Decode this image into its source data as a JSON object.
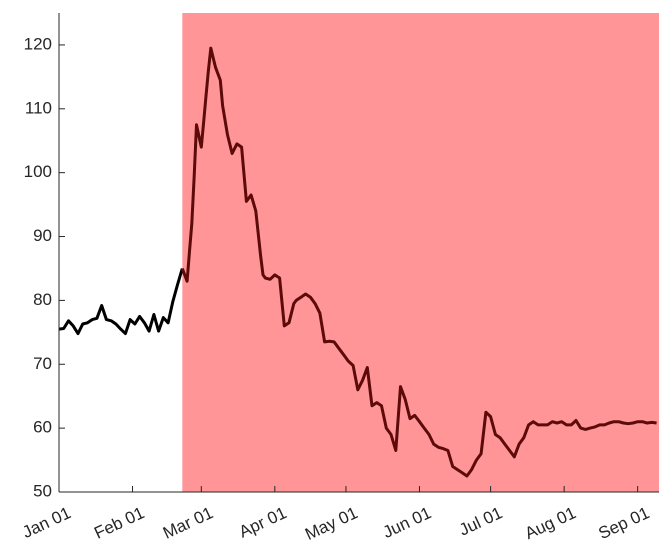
{
  "chart_data": {
    "type": "line",
    "title": "",
    "xlabel": "",
    "ylabel": "",
    "ylim": [
      50,
      125
    ],
    "xlim": [
      "2020-01-01",
      "2020-09-10"
    ],
    "grid": false,
    "colors": {
      "line_normal": "#000000",
      "line_shaded": "#5c0a0a",
      "shade": "#ff9597",
      "axis": "#262626"
    },
    "yticks": [
      50,
      60,
      70,
      80,
      90,
      100,
      110,
      120
    ],
    "ytick_labels": [
      "50",
      "60",
      "70",
      "80",
      "90",
      "100",
      "110",
      "120"
    ],
    "xticks": [
      "2020-01-01",
      "2020-02-01",
      "2020-03-01",
      "2020-04-01",
      "2020-05-01",
      "2020-06-01",
      "2020-07-01",
      "2020-08-01",
      "2020-09-01"
    ],
    "xtick_labels": [
      "Jan 01",
      "Feb 01",
      "Mar 01",
      "Apr 01",
      "May 01",
      "Jun 01",
      "Jul 01",
      "Aug 01",
      "Sep 01"
    ],
    "shaded_region": {
      "x_start": "2020-02-22",
      "x_end": "2020-09-10"
    },
    "series": [
      {
        "x": [
          "2020-01-01",
          "2020-01-03",
          "2020-01-05",
          "2020-01-07",
          "2020-01-09",
          "2020-01-11",
          "2020-01-13",
          "2020-01-15",
          "2020-01-17",
          "2020-01-19",
          "2020-01-21",
          "2020-01-23",
          "2020-01-25",
          "2020-01-27",
          "2020-01-29",
          "2020-01-31",
          "2020-02-02",
          "2020-02-04",
          "2020-02-06",
          "2020-02-08",
          "2020-02-10",
          "2020-02-12",
          "2020-02-14",
          "2020-02-16",
          "2020-02-18",
          "2020-02-20",
          "2020-02-22",
          "2020-02-24",
          "2020-02-25",
          "2020-02-26",
          "2020-02-27",
          "2020-02-28",
          "2020-03-01",
          "2020-03-02",
          "2020-03-03",
          "2020-03-04",
          "2020-03-05",
          "2020-03-07",
          "2020-03-09",
          "2020-03-10",
          "2020-03-12",
          "2020-03-14",
          "2020-03-16",
          "2020-03-18",
          "2020-03-20",
          "2020-03-22",
          "2020-03-24",
          "2020-03-26",
          "2020-03-27",
          "2020-03-28",
          "2020-03-30",
          "2020-04-01",
          "2020-04-03",
          "2020-04-05",
          "2020-04-07",
          "2020-04-09",
          "2020-04-10",
          "2020-04-12",
          "2020-04-14",
          "2020-04-16",
          "2020-04-18",
          "2020-04-20",
          "2020-04-22",
          "2020-04-24",
          "2020-04-26",
          "2020-04-28",
          "2020-04-30",
          "2020-05-02",
          "2020-05-04",
          "2020-05-06",
          "2020-05-08",
          "2020-05-10",
          "2020-05-12",
          "2020-05-14",
          "2020-05-16",
          "2020-05-18",
          "2020-05-20",
          "2020-05-22",
          "2020-05-24",
          "2020-05-26",
          "2020-05-28",
          "2020-05-30",
          "2020-06-01",
          "2020-06-03",
          "2020-06-05",
          "2020-06-07",
          "2020-06-09",
          "2020-06-11",
          "2020-06-13",
          "2020-06-15",
          "2020-06-17",
          "2020-06-19",
          "2020-06-21",
          "2020-06-23",
          "2020-06-25",
          "2020-06-27",
          "2020-06-29",
          "2020-07-01",
          "2020-07-03",
          "2020-07-05",
          "2020-07-07",
          "2020-07-09",
          "2020-07-11",
          "2020-07-13",
          "2020-07-15",
          "2020-07-17",
          "2020-07-19",
          "2020-07-21",
          "2020-07-23",
          "2020-07-25",
          "2020-07-27",
          "2020-07-29",
          "2020-07-31",
          "2020-08-02",
          "2020-08-04",
          "2020-08-06",
          "2020-08-08",
          "2020-08-10",
          "2020-08-12",
          "2020-08-14",
          "2020-08-16",
          "2020-08-18",
          "2020-08-20",
          "2020-08-22",
          "2020-08-24",
          "2020-08-26",
          "2020-08-28",
          "2020-08-30",
          "2020-09-01",
          "2020-09-03",
          "2020-09-05",
          "2020-09-07",
          "2020-09-09"
        ],
        "y": [
          75.5,
          75.6,
          76.8,
          76.0,
          74.8,
          76.3,
          76.5,
          77.0,
          77.2,
          79.2,
          77.0,
          76.8,
          76.3,
          75.5,
          74.8,
          77.0,
          76.3,
          77.5,
          76.5,
          75.2,
          77.8,
          75.2,
          77.3,
          76.5,
          79.8,
          82.5,
          85.0,
          83.0,
          87.5,
          92.0,
          99.5,
          107.5,
          104.0,
          108.0,
          112.0,
          116.0,
          119.5,
          116.5,
          114.5,
          110.5,
          106.0,
          103.0,
          104.5,
          104.0,
          95.5,
          96.5,
          94.0,
          87.0,
          84.0,
          83.5,
          83.3,
          84.0,
          83.5,
          76.0,
          76.5,
          79.5,
          80.0,
          80.5,
          81.0,
          80.5,
          79.5,
          78.0,
          73.5,
          73.6,
          73.5,
          72.5,
          71.5,
          70.5,
          69.8,
          66.0,
          67.5,
          69.5,
          63.5,
          64.0,
          63.5,
          60.0,
          59.0,
          56.5,
          66.5,
          64.5,
          61.5,
          62.0,
          61.0,
          60.0,
          59.0,
          57.5,
          57.0,
          56.8,
          56.5,
          54.0,
          53.5,
          53.0,
          52.5,
          53.5,
          55.0,
          56.0,
          62.5,
          61.8,
          59.0,
          58.5,
          57.5,
          56.5,
          55.5,
          57.5,
          58.5,
          60.5,
          61.0,
          60.5,
          60.5,
          60.5,
          61.0,
          60.8,
          61.0,
          60.5,
          60.5,
          61.2,
          60.0,
          59.8,
          60.0,
          60.2,
          60.5,
          60.5,
          60.8,
          61.0,
          61.0,
          60.8,
          60.7,
          60.8,
          61.0,
          61.0,
          60.8,
          60.9,
          60.8
        ]
      }
    ]
  }
}
